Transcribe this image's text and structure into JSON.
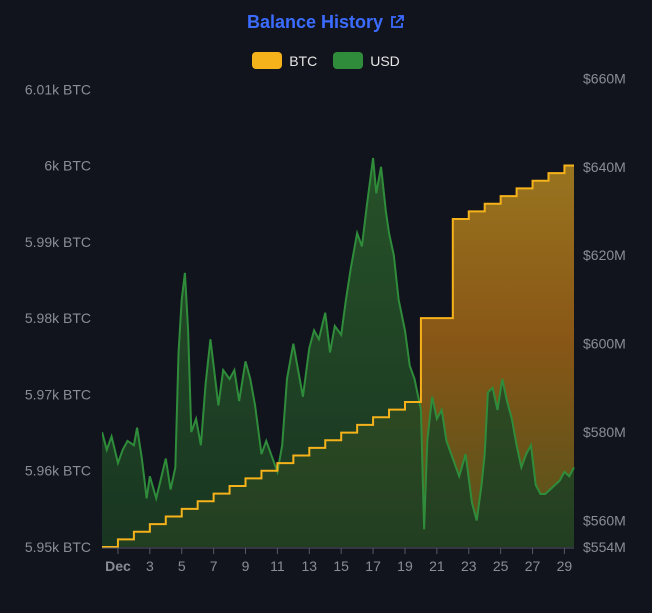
{
  "header": {
    "title": "Balance History",
    "link_icon": "external-link-icon"
  },
  "legend": [
    {
      "label": "BTC",
      "color": "#f6b21b"
    },
    {
      "label": "USD",
      "color": "#2f8c3a"
    }
  ],
  "chart_data": {
    "type": "area",
    "title": "Balance History",
    "x_ticks": [
      "Dec",
      "3",
      "5",
      "7",
      "9",
      "11",
      "13",
      "15",
      "17",
      "19",
      "21",
      "23",
      "25",
      "27",
      "29"
    ],
    "x_range": [
      0,
      29.6
    ],
    "y_left": {
      "unit": "BTC",
      "range": [
        5950,
        6012
      ],
      "ticks": [
        {
          "value": 5950,
          "label": "5.95k BTC"
        },
        {
          "value": 5960,
          "label": "5.96k BTC"
        },
        {
          "value": 5970,
          "label": "5.97k BTC"
        },
        {
          "value": 5980,
          "label": "5.98k BTC"
        },
        {
          "value": 5990,
          "label": "5.99k BTC"
        },
        {
          "value": 6000,
          "label": "6k BTC"
        },
        {
          "value": 6010,
          "label": "6.01k BTC"
        }
      ]
    },
    "y_right": {
      "unit": "USD",
      "range": [
        554,
        661
      ],
      "ticks": [
        {
          "value": 554,
          "label": "$554M"
        },
        {
          "value": 560,
          "label": "$560M"
        },
        {
          "value": 580,
          "label": "$580M"
        },
        {
          "value": 600,
          "label": "$600M"
        },
        {
          "value": 620,
          "label": "$620M"
        },
        {
          "value": 640,
          "label": "$640M"
        },
        {
          "value": 660,
          "label": "$660M"
        }
      ]
    },
    "series": [
      {
        "name": "BTC",
        "axis": "left",
        "color": "#f6b21b",
        "points": [
          [
            0,
            5950
          ],
          [
            1,
            5951
          ],
          [
            2,
            5952
          ],
          [
            3,
            5953
          ],
          [
            4,
            5954
          ],
          [
            5,
            5955
          ],
          [
            6,
            5956
          ],
          [
            7,
            5957
          ],
          [
            8,
            5958
          ],
          [
            9,
            5959
          ],
          [
            10,
            5960
          ],
          [
            11,
            5961
          ],
          [
            12,
            5962
          ],
          [
            13,
            5963
          ],
          [
            14,
            5964
          ],
          [
            15,
            5965
          ],
          [
            16,
            5966
          ],
          [
            17,
            5967
          ],
          [
            18,
            5968
          ],
          [
            19,
            5969
          ],
          [
            20,
            5980
          ],
          [
            22,
            5993
          ],
          [
            23,
            5994
          ],
          [
            24,
            5995
          ],
          [
            25,
            5996
          ],
          [
            26,
            5997
          ],
          [
            27,
            5998
          ],
          [
            28,
            5999
          ],
          [
            29,
            6000
          ],
          [
            29.6,
            6000
          ]
        ]
      },
      {
        "name": "USD",
        "axis": "right",
        "color": "#2f8c3a",
        "points": [
          [
            0,
            580
          ],
          [
            0.3,
            576
          ],
          [
            0.6,
            579
          ],
          [
            1,
            573
          ],
          [
            1.3,
            576
          ],
          [
            1.6,
            578
          ],
          [
            2,
            577
          ],
          [
            2.2,
            581
          ],
          [
            2.5,
            574
          ],
          [
            2.8,
            565
          ],
          [
            3,
            570
          ],
          [
            3.4,
            565
          ],
          [
            3.8,
            571
          ],
          [
            4,
            574
          ],
          [
            4.3,
            567
          ],
          [
            4.6,
            572
          ],
          [
            4.8,
            598
          ],
          [
            5,
            610
          ],
          [
            5.2,
            616
          ],
          [
            5.4,
            603
          ],
          [
            5.6,
            580
          ],
          [
            5.9,
            583
          ],
          [
            6.2,
            577
          ],
          [
            6.5,
            591
          ],
          [
            6.8,
            601
          ],
          [
            7,
            595
          ],
          [
            7.3,
            586
          ],
          [
            7.6,
            594
          ],
          [
            8,
            592
          ],
          [
            8.3,
            594
          ],
          [
            8.6,
            587
          ],
          [
            9,
            596
          ],
          [
            9.3,
            592
          ],
          [
            9.6,
            586
          ],
          [
            10,
            575
          ],
          [
            10.3,
            578
          ],
          [
            10.6,
            575
          ],
          [
            11,
            571
          ],
          [
            11.3,
            577
          ],
          [
            11.6,
            592
          ],
          [
            12,
            600
          ],
          [
            12.3,
            594
          ],
          [
            12.6,
            588
          ],
          [
            13,
            599
          ],
          [
            13.3,
            603
          ],
          [
            13.6,
            601
          ],
          [
            14,
            607
          ],
          [
            14.3,
            598
          ],
          [
            14.6,
            604
          ],
          [
            15,
            602
          ],
          [
            15.3,
            610
          ],
          [
            15.6,
            617
          ],
          [
            16,
            625
          ],
          [
            16.3,
            622
          ],
          [
            16.6,
            631
          ],
          [
            17,
            642
          ],
          [
            17.2,
            634
          ],
          [
            17.5,
            640
          ],
          [
            17.8,
            630
          ],
          [
            18,
            625
          ],
          [
            18.3,
            620
          ],
          [
            18.6,
            610
          ],
          [
            19,
            603
          ],
          [
            19.3,
            595
          ],
          [
            19.6,
            592
          ],
          [
            20,
            585
          ],
          [
            20.2,
            558
          ],
          [
            20.4,
            578
          ],
          [
            20.7,
            588
          ],
          [
            21,
            583
          ],
          [
            21.3,
            585
          ],
          [
            21.6,
            578
          ],
          [
            22,
            574
          ],
          [
            22.4,
            570
          ],
          [
            22.8,
            575
          ],
          [
            23.2,
            564
          ],
          [
            23.5,
            560
          ],
          [
            23.8,
            568
          ],
          [
            24,
            575
          ],
          [
            24.2,
            589
          ],
          [
            24.5,
            590
          ],
          [
            24.8,
            585
          ],
          [
            25.1,
            592
          ],
          [
            25.4,
            587
          ],
          [
            25.7,
            583
          ],
          [
            26,
            577
          ],
          [
            26.3,
            572
          ],
          [
            26.6,
            575
          ],
          [
            26.9,
            577
          ],
          [
            27.2,
            568
          ],
          [
            27.5,
            566
          ],
          [
            27.8,
            566
          ],
          [
            28.1,
            567
          ],
          [
            28.4,
            568
          ],
          [
            28.7,
            569
          ],
          [
            29,
            571
          ],
          [
            29.3,
            570
          ],
          [
            29.6,
            572
          ]
        ]
      }
    ],
    "legend_position": "top-center",
    "grid": false
  }
}
